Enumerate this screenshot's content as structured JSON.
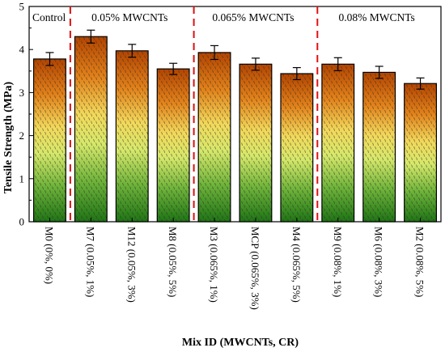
{
  "chart_data": {
    "type": "bar",
    "title": "",
    "xlabel": "Mix ID (MWCNTs, CR)",
    "ylabel": "Tensile Strength (MPa)",
    "ylim": [
      0,
      5
    ],
    "yticks": [
      "0",
      "1",
      "2",
      "3",
      "4",
      "5"
    ],
    "grid": false,
    "categories": [
      "M0 (0%, 0%)",
      "M7 (0.05%, 1%)",
      "M12 (0.05%, 3%)",
      "M8 (0.05%, 5%)",
      "M3 (0.065%, 1%)",
      "MCP (0.065%, 3%)",
      "M4 (0.065%, 5%)",
      "M9 (0.08%, 1%)",
      "M6 (0.08%, 3%)",
      "M2 (0.08%, 5%)"
    ],
    "values": [
      3.78,
      4.3,
      3.97,
      3.55,
      3.93,
      3.66,
      3.44,
      3.66,
      3.47,
      3.21
    ],
    "errors": [
      0.15,
      0.15,
      0.15,
      0.13,
      0.16,
      0.14,
      0.14,
      0.15,
      0.14,
      0.13
    ],
    "groups": [
      {
        "label": "Control",
        "start": 0,
        "end": 0
      },
      {
        "label": "0.05% MWCNTs",
        "start": 1,
        "end": 3
      },
      {
        "label": "0.065% MWCNTs",
        "start": 4,
        "end": 6
      },
      {
        "label": "0.08% MWCNTs",
        "start": 7,
        "end": 9
      }
    ],
    "colors": {
      "bar_top": "#b84a00",
      "bar_mid_orange": "#e88a1a",
      "bar_mid_yellow": "#f2e85a",
      "bar_bottom": "#1f7a14",
      "separator": "#e01010",
      "pattern": "#333333"
    }
  }
}
